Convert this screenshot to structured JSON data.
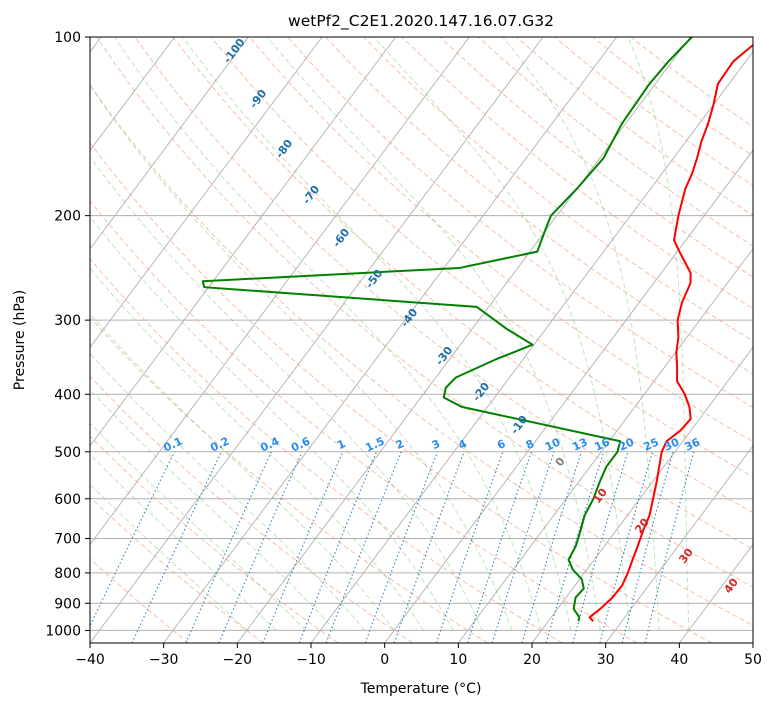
{
  "chart_data": {
    "type": "line",
    "subtype": "skew-t log-p diagram",
    "title": "wetPf2_C2E1.2020.147.16.07.G32",
    "xlabel": "Temperature (°C)",
    "ylabel": "Pressure (hPa)",
    "xlim": [
      -40,
      50
    ],
    "ylim": [
      1050,
      100
    ],
    "y_scale": "log",
    "grid": true,
    "x_ticks": [
      "−40",
      "−30",
      "−20",
      "−10",
      "0",
      "10",
      "20",
      "30",
      "40",
      "50"
    ],
    "y_ticks": [
      "100",
      "200",
      "300",
      "400",
      "500",
      "600",
      "700",
      "800",
      "900",
      "1000"
    ],
    "series": [
      {
        "name": "",
        "color": "#ff0000",
        "points": [
          [
            26.1,
            965
          ],
          [
            25.2,
            950
          ],
          [
            25.8,
            920
          ],
          [
            26.3,
            880
          ],
          [
            26.4,
            840
          ],
          [
            25.9,
            800
          ],
          [
            25.2,
            760
          ],
          [
            24.5,
            720
          ],
          [
            23.7,
            680
          ],
          [
            23.0,
            640
          ],
          [
            21.8,
            600
          ],
          [
            20.5,
            560
          ],
          [
            19.0,
            520
          ],
          [
            18.2,
            500
          ],
          [
            17.8,
            480
          ],
          [
            18.6,
            460
          ],
          [
            18.8,
            440
          ],
          [
            17.4,
            420
          ],
          [
            15.5,
            400
          ],
          [
            13.1,
            380
          ],
          [
            11.7,
            360
          ],
          [
            10.1,
            340
          ],
          [
            8.8,
            320
          ],
          [
            7.0,
            300
          ],
          [
            5.8,
            280
          ],
          [
            5.0,
            260
          ],
          [
            4.0,
            250
          ],
          [
            2.2,
            240
          ],
          [
            0.3,
            230
          ],
          [
            -1.6,
            220
          ],
          [
            -3.5,
            200
          ],
          [
            -5.3,
            180
          ],
          [
            -5.9,
            170
          ],
          [
            -6.8,
            160
          ],
          [
            -7.9,
            150
          ],
          [
            -8.8,
            140
          ],
          [
            -10.0,
            130
          ],
          [
            -11.5,
            120
          ],
          [
            -11.7,
            110
          ],
          [
            -10.2,
            100
          ]
        ]
      },
      {
        "name": "",
        "color": "#008000",
        "points": [
          [
            24.1,
            965
          ],
          [
            23.8,
            950
          ],
          [
            22.2,
            920
          ],
          [
            21.3,
            880
          ],
          [
            21.5,
            850
          ],
          [
            20.3,
            820
          ],
          [
            18.1,
            790
          ],
          [
            16.5,
            760
          ],
          [
            16.1,
            720
          ],
          [
            15.2,
            680
          ],
          [
            14.2,
            640
          ],
          [
            13.7,
            600
          ],
          [
            12.8,
            560
          ],
          [
            12.2,
            530
          ],
          [
            12.2,
            500
          ],
          [
            11.5,
            480
          ],
          [
            -13.5,
            420
          ],
          [
            -16.9,
            405
          ],
          [
            -17.6,
            390
          ],
          [
            -17.3,
            375
          ],
          [
            -13.8,
            350
          ],
          [
            -10.2,
            330
          ],
          [
            -15.4,
            310
          ],
          [
            -21.6,
            285
          ],
          [
            -60.6,
            264
          ],
          [
            -61.4,
            258
          ],
          [
            -27.9,
            245
          ],
          [
            -19.0,
            230
          ],
          [
            -20.2,
            210
          ],
          [
            -20.8,
            200
          ],
          [
            -20.0,
            180
          ],
          [
            -19.5,
            160
          ],
          [
            -20.5,
            140
          ],
          [
            -20.8,
            120
          ],
          [
            -20.5,
            110
          ],
          [
            -19.8,
            100
          ]
        ]
      }
    ],
    "dry_adiabats_label": [
      "-100",
      "-90",
      "-80",
      "-70",
      "-60",
      "-50",
      "-40",
      "-30",
      "-20",
      "-10",
      "0",
      "10",
      "20",
      "30",
      "40"
    ],
    "mixing_ratio_labels": [
      "0.1",
      "0.2",
      "0.4",
      "0.6",
      "1",
      "1.5",
      "2",
      "3",
      "4",
      "6",
      "8",
      "10",
      "13",
      "16",
      "20",
      "25",
      "30",
      "36"
    ]
  },
  "colors": {
    "temperature": "#ff0000",
    "dewpoint": "#008000",
    "dry_adiabat": "#f4a582",
    "moist_adiabat": "#74c476",
    "mixing_ratio": "#1f77b4",
    "isotherm": "#808080",
    "dry_adiabat_label": "#1f6fa8",
    "mixing_label": "#2b8cf0",
    "warm_label": "#d62728"
  }
}
